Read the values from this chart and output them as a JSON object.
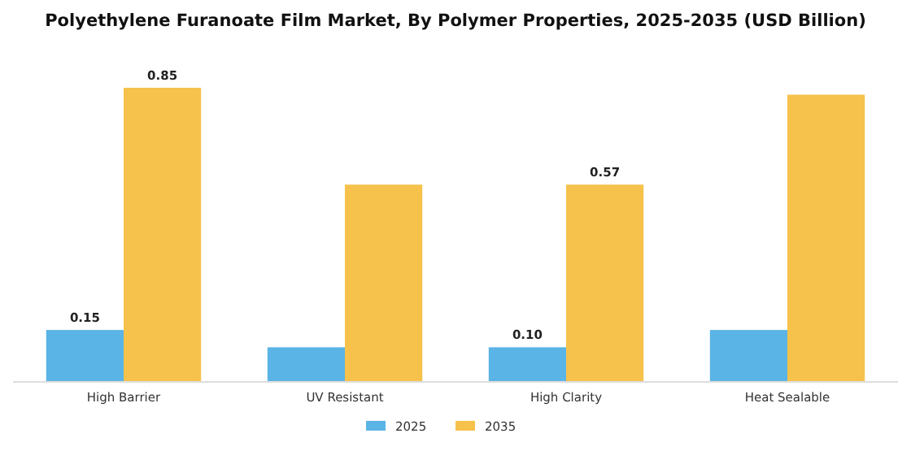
{
  "chart_data": {
    "type": "bar",
    "title": "Polyethylene Furanoate Film Market, By Polymer Properties, 2025-2035 (USD Billion)",
    "categories": [
      "High Barrier",
      "UV Resistant",
      "High Clarity",
      "Heat Sealable"
    ],
    "series": [
      {
        "name": "2025",
        "color": "#5ab4e5",
        "values": [
          0.15,
          0.1,
          0.1,
          0.15
        ],
        "value_labels": [
          "0.15",
          null,
          "0.10",
          null
        ]
      },
      {
        "name": "2035",
        "color": "#f6c24c",
        "values": [
          0.85,
          0.57,
          0.57,
          0.83
        ],
        "value_labels": [
          "0.85",
          null,
          "0.57",
          null
        ]
      }
    ],
    "legend": "bottom"
  }
}
